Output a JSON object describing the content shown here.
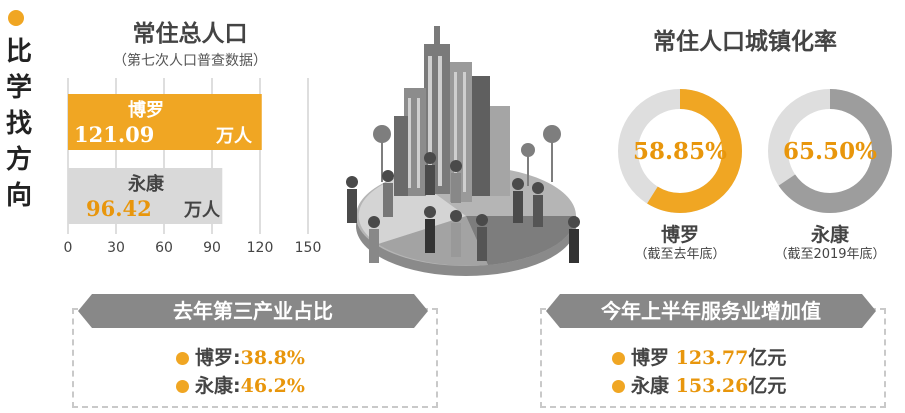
{
  "side_title": "比学找方向",
  "population": {
    "title": "常住总人口",
    "subtitle": "（第七次人口普查数据）",
    "unit": "万人"
  },
  "urbanization": {
    "title": "常住人口城镇化率",
    "items": [
      {
        "name": "博罗",
        "value": "58.85%",
        "note": "（截至去年底）"
      },
      {
        "name": "永康",
        "value": "65.50%",
        "note": "（截至2019年底）"
      }
    ]
  },
  "tertiary": {
    "title": "去年第三产业占比",
    "items": [
      {
        "name": "博罗:",
        "value": "38.8%"
      },
      {
        "name": "永康:",
        "value": "46.2%"
      }
    ]
  },
  "services": {
    "title": "今年上半年服务业增加值",
    "unit": "亿元",
    "items": [
      {
        "name": "博罗",
        "value": "123.77"
      },
      {
        "name": "永康",
        "value": "153.26"
      }
    ]
  },
  "colors": {
    "accent": "#e8960c",
    "bar_primary": "#f0a623",
    "bar_secondary": "#d9d9d9",
    "donut_track": "#dedede",
    "donut_secondary": "#9d9d9d"
  },
  "chart_data": [
    {
      "type": "bar",
      "orientation": "horizontal",
      "categories": [
        "博罗",
        "永康"
      ],
      "values": [
        121.09,
        96.42
      ],
      "value_labels": [
        "121.09",
        "96.42"
      ],
      "xticks": [
        "0",
        "30",
        "60",
        "90",
        "120",
        "150"
      ],
      "xlim": [
        0,
        150
      ],
      "grid": true
    },
    {
      "type": "pie",
      "categories": [
        "博罗",
        "永康"
      ],
      "values": [
        58.85,
        65.5
      ]
    }
  ]
}
